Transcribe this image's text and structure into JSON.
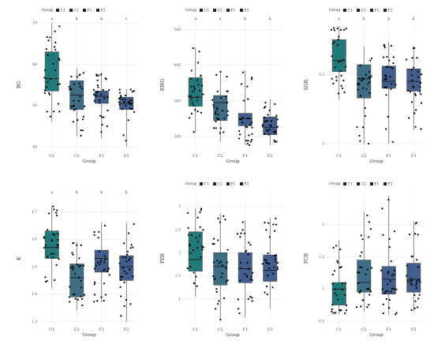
{
  "colors": {
    "C1": "#217a79",
    "C2": "#3d6e86",
    "F1": "#415e8c",
    "F2": "#415e8c",
    "point": "#000000",
    "whisker": "#555555",
    "grid": "#ebebeb"
  },
  "chart_data": [
    {
      "type": "box",
      "xlabel": "Group",
      "ylabel": "BG",
      "categories": [
        "C1",
        "C2",
        "F1",
        "F2"
      ],
      "legend_title": "Group",
      "legend_position": "top",
      "ylim": [
        39,
        71
      ],
      "yticks": [
        40,
        50,
        60,
        70
      ],
      "letters": [
        "a",
        "b",
        "b",
        "c"
      ],
      "boxes": [
        {
          "min": 46,
          "q1": 53.5,
          "median": 56.5,
          "q3": 63,
          "max": 70
        },
        {
          "min": 42.5,
          "q1": 49,
          "median": 52.5,
          "q3": 56,
          "max": 59
        },
        {
          "min": 42,
          "q1": 50.5,
          "median": 52.2,
          "q3": 53.5,
          "max": 58
        },
        {
          "min": 40,
          "q1": 49,
          "median": 50.5,
          "q3": 52,
          "max": 54
        }
      ]
    },
    {
      "type": "box",
      "xlabel": "Group",
      "ylabel": "RWG",
      "categories": [
        "C1",
        "C2",
        "F1",
        "F2"
      ],
      "legend_title": "Group",
      "legend_position": "top",
      "ylim": [
        160,
        530
      ],
      "yticks": [
        200,
        300,
        400,
        500
      ],
      "letters": [
        "a",
        "a",
        "b",
        "b"
      ],
      "boxes": [
        {
          "min": 210,
          "q1": 285,
          "median": 310,
          "q3": 365,
          "max": 450
        },
        {
          "min": 185,
          "q1": 245,
          "median": 295,
          "q3": 315,
          "max": 385
        },
        {
          "min": 175,
          "q1": 230,
          "median": 250,
          "q3": 265,
          "max": 385
        },
        {
          "min": 175,
          "q1": 205,
          "median": 225,
          "q3": 255,
          "max": 305
        }
      ]
    },
    {
      "type": "box",
      "xlabel": "Group",
      "ylabel": "SGR",
      "categories": [
        "C1",
        "C2",
        "F1",
        "F2"
      ],
      "legend_title": "Group",
      "legend_position": "top",
      "ylim": [
        2.95,
        3.9
      ],
      "yticks": [
        3.0,
        3.5
      ],
      "letters": [
        "a",
        "b",
        "b",
        "b"
      ],
      "boxes": [
        {
          "min": 3.32,
          "q1": 3.52,
          "median": 3.6,
          "q3": 3.75,
          "max": 3.85
        },
        {
          "min": 3.0,
          "q1": 3.33,
          "median": 3.47,
          "q3": 3.57,
          "max": 3.7
        },
        {
          "min": 3.0,
          "q1": 3.4,
          "median": 3.45,
          "q3": 3.56,
          "max": 3.73
        },
        {
          "min": 3.1,
          "q1": 3.38,
          "median": 3.45,
          "q3": 3.54,
          "max": 3.7
        }
      ]
    },
    {
      "type": "box",
      "xlabel": "Group",
      "ylabel": "K",
      "categories": [
        "C1",
        "C2",
        "F1",
        "F2"
      ],
      "legend_title": "Group",
      "legend_position": "none",
      "ylim": [
        1.29,
        1.77
      ],
      "yticks": [
        1.3,
        1.4,
        1.5,
        1.6,
        1.7
      ],
      "letters": [
        "a",
        "b",
        "b",
        "b"
      ],
      "boxes": [
        {
          "min": 1.42,
          "q1": 1.53,
          "median": 1.57,
          "q3": 1.63,
          "max": 1.72
        },
        {
          "min": 1.34,
          "q1": 1.39,
          "median": 1.46,
          "q3": 1.51,
          "max": 1.59
        },
        {
          "min": 1.37,
          "q1": 1.48,
          "median": 1.53,
          "q3": 1.56,
          "max": 1.66
        },
        {
          "min": 1.3,
          "q1": 1.45,
          "median": 1.5,
          "q3": 1.54,
          "max": 1.66
        }
      ]
    },
    {
      "type": "box",
      "xlabel": "Group",
      "ylabel": "PER",
      "categories": [
        "C1",
        "C2",
        "F1",
        "F2"
      ],
      "legend_title": "Group",
      "legend_position": "top",
      "ylim": [
        0.45,
        3.3
      ],
      "yticks": [
        1.0,
        1.5,
        2.0,
        2.5,
        3.0
      ],
      "letters": [],
      "boxes": [
        {
          "min": 1.05,
          "q1": 1.6,
          "median": 1.85,
          "q3": 2.45,
          "max": 2.95
        },
        {
          "min": 0.55,
          "q1": 1.3,
          "median": 1.7,
          "q3": 2.0,
          "max": 2.85
        },
        {
          "min": 0.6,
          "q1": 1.35,
          "median": 1.65,
          "q3": 2.0,
          "max": 2.7
        },
        {
          "min": 0.8,
          "q1": 1.38,
          "median": 1.62,
          "q3": 1.95,
          "max": 2.75
        }
      ]
    },
    {
      "type": "box",
      "xlabel": "Group",
      "ylabel": "FCR",
      "categories": [
        "C1",
        "C2",
        "F1",
        "F2"
      ],
      "legend_title": "Group",
      "legend_position": "top",
      "ylim": [
        0.45,
        2.5
      ],
      "yticks": [
        0.5,
        1.0,
        1.5,
        2.0
      ],
      "letters": [],
      "boxes": [
        {
          "min": 0.6,
          "q1": 0.75,
          "median": 1.0,
          "q3": 1.1,
          "max": 1.75
        },
        {
          "min": 0.65,
          "q1": 0.95,
          "median": 1.1,
          "q3": 1.45,
          "max": 2.2
        },
        {
          "min": 0.6,
          "q1": 0.92,
          "median": 1.15,
          "q3": 1.35,
          "max": 2.45
        },
        {
          "min": 0.65,
          "q1": 0.95,
          "median": 1.15,
          "q3": 1.4,
          "max": 2.05
        }
      ]
    }
  ]
}
